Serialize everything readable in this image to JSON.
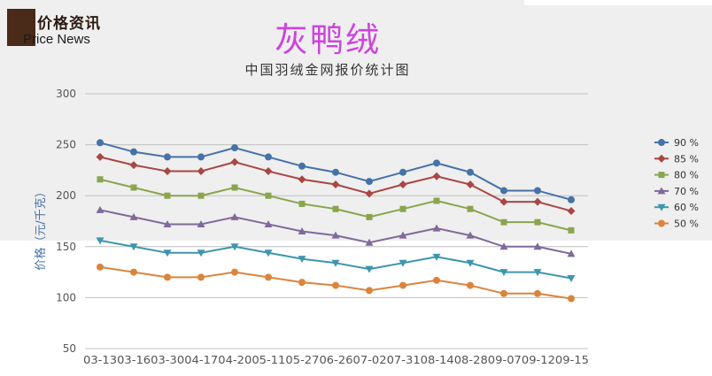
{
  "header": {
    "logo_cn": "价格资讯",
    "logo_en": "Price News",
    "title": "灰鸭绒",
    "subtitle": "中国羽绒金网报价统计图"
  },
  "chart_data": {
    "type": "line",
    "title": "灰鸭绒",
    "subtitle": "中国羽绒金网报价统计图",
    "xlabel": "",
    "ylabel": "价格（元/千克）",
    "ylim": [
      50,
      300
    ],
    "yticks": [
      50,
      100,
      150,
      200,
      250,
      300
    ],
    "grid": true,
    "legend_position": "right",
    "categories": [
      "03-13",
      "03-16",
      "03-30",
      "04-17",
      "04-20",
      "05-11",
      "05-27",
      "06-26",
      "07-02",
      "07-31",
      "08-14",
      "08-28",
      "09-07",
      "09-12",
      "09-15"
    ],
    "xtick_text": "03-1303-1603-3004-1704-2005-1105-2706-2607-0207-3108-1408-2809-0709-1209-15",
    "series": [
      {
        "name": "90 %",
        "color": "#4572a7",
        "marker": "circle",
        "values": [
          252,
          243,
          238,
          238,
          247,
          238,
          229,
          223,
          214,
          223,
          232,
          223,
          205,
          205,
          196
        ]
      },
      {
        "name": "85 %",
        "color": "#aa4643",
        "marker": "diamond",
        "values": [
          238,
          230,
          224,
          224,
          233,
          224,
          216,
          211,
          202,
          211,
          219,
          211,
          194,
          194,
          185
        ]
      },
      {
        "name": "80 %",
        "color": "#89a54e",
        "marker": "square",
        "values": [
          216,
          208,
          200,
          200,
          208,
          200,
          192,
          187,
          179,
          187,
          195,
          187,
          174,
          174,
          166
        ]
      },
      {
        "name": "70 %",
        "color": "#80699b",
        "marker": "triangle",
        "values": [
          186,
          179,
          172,
          172,
          179,
          172,
          165,
          161,
          154,
          161,
          168,
          161,
          150,
          150,
          143
        ]
      },
      {
        "name": "60 %",
        "color": "#3d96ae",
        "marker": "triangle-down",
        "values": [
          156,
          150,
          144,
          144,
          150,
          144,
          138,
          134,
          128,
          134,
          140,
          134,
          125,
          125,
          119
        ]
      },
      {
        "name": "50 %",
        "color": "#db843d",
        "marker": "circle",
        "values": [
          130,
          125,
          120,
          120,
          125,
          120,
          115,
          112,
          107,
          112,
          117,
          112,
          104,
          104,
          99
        ]
      }
    ]
  }
}
